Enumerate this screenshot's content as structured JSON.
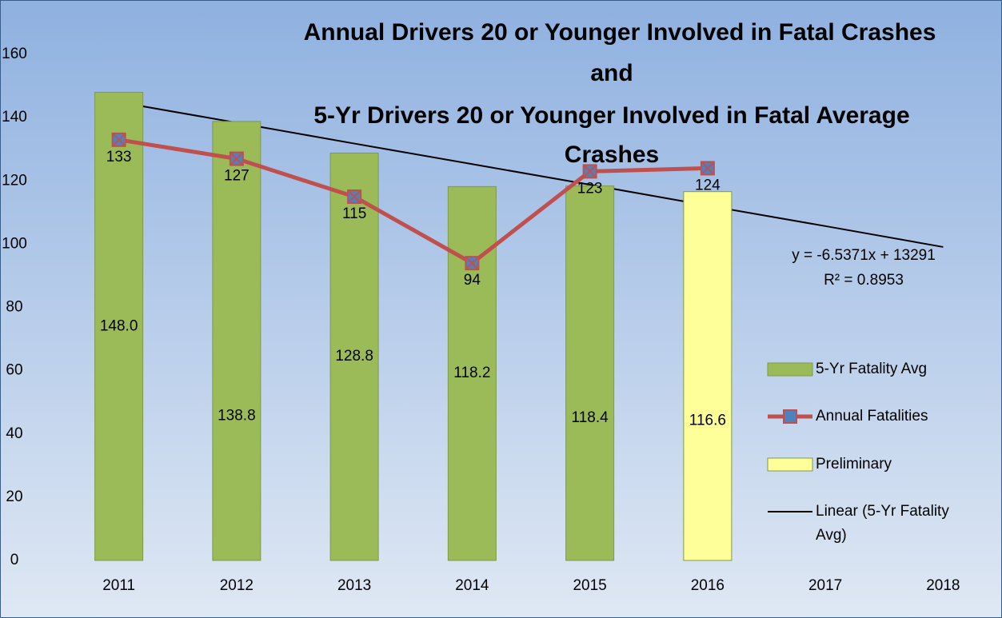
{
  "chart_data": {
    "type": "combo",
    "title": [
      "Annual Drivers 20 or Younger Involved in Fatal Crashes",
      "and",
      "5-Yr Drivers 20 or Younger Involved in Fatal Average",
      "Crashes"
    ],
    "categories": [
      "2011",
      "2012",
      "2013",
      "2014",
      "2015",
      "2016",
      "2017",
      "2018"
    ],
    "series": [
      {
        "name": "5-Yr Fatality Avg",
        "type": "bar",
        "color": "#9bbb59",
        "values": [
          148.0,
          138.8,
          128.8,
          118.2,
          118.4,
          null,
          null,
          null
        ],
        "value_labels": [
          "148.0",
          "138.8",
          "128.8",
          "118.2",
          "118.4",
          null,
          null,
          null
        ]
      },
      {
        "name": "Annual Fatalities",
        "type": "line",
        "color": "#c0504d",
        "marker_color": "#4f81bd",
        "values": [
          133,
          127,
          115,
          94,
          123,
          124,
          null,
          null
        ]
      },
      {
        "name": "Preliminary",
        "type": "bar",
        "color": "#ffff99",
        "values": [
          null,
          null,
          null,
          null,
          null,
          116.6,
          null,
          null
        ],
        "value_labels": [
          null,
          null,
          null,
          null,
          null,
          "116.6",
          null,
          null
        ]
      },
      {
        "name": "Linear (5-Yr Fatality Avg)",
        "type": "trend",
        "color": "#000000",
        "values": [
          144.9,
          138.4,
          131.8,
          125.3,
          118.8,
          112.2,
          105.7,
          99.1
        ]
      }
    ],
    "annotations": [
      "y = -6.5371x + 13291",
      "R² = 0.8953"
    ],
    "ylim": [
      0,
      160
    ],
    "yticks": [
      0,
      20,
      40,
      60,
      80,
      100,
      120,
      140,
      160
    ],
    "grid": true,
    "legend": "right"
  }
}
